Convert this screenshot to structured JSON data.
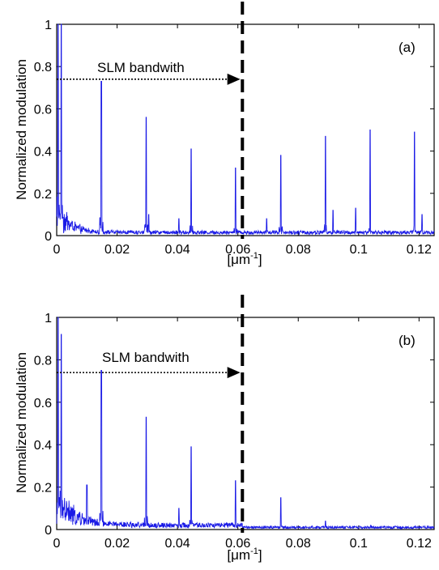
{
  "chart_data": [
    {
      "panel_label": "(a)",
      "type": "line",
      "ylabel": "Normalized modulation",
      "xlabel": "[μm⁻¹]",
      "xlabel_base": "[μm",
      "xlabel_exp": "-1",
      "xlabel_end": "]",
      "xlim": [
        0,
        0.125
      ],
      "ylim": [
        0,
        1
      ],
      "x_ticks": [
        "0",
        "0.02",
        "0.04",
        "0.06",
        "0.08",
        "0.1",
        "0.12"
      ],
      "x_tick_values": [
        0,
        0.02,
        0.04,
        0.06,
        0.08,
        0.1,
        0.12
      ],
      "y_ticks": [
        "0",
        "0.2",
        "0.4",
        "0.6",
        "0.8",
        "1"
      ],
      "y_tick_values": [
        0,
        0.2,
        0.4,
        0.6,
        0.8,
        1
      ],
      "grid": false,
      "annotation": {
        "text": "SLM bandwith",
        "arrow_from": [
          0.0,
          0.74
        ],
        "arrow_to": [
          0.0608,
          0.74
        ]
      },
      "cutoff_x": 0.0615,
      "series_color": "#1a1ae6",
      "noise": {
        "floor": 0.015,
        "decay_amp": 0.22,
        "decay_scale": 0.004
      },
      "peaks": [
        {
          "x": 0.0005,
          "y": 1.0
        },
        {
          "x": 0.0015,
          "y": 1.0
        },
        {
          "x": 0.0148,
          "y": 0.73
        },
        {
          "x": 0.0296,
          "y": 0.56
        },
        {
          "x": 0.0305,
          "y": 0.1
        },
        {
          "x": 0.0405,
          "y": 0.08
        },
        {
          "x": 0.0445,
          "y": 0.41
        },
        {
          "x": 0.0592,
          "y": 0.32
        },
        {
          "x": 0.0695,
          "y": 0.08
        },
        {
          "x": 0.0742,
          "y": 0.38
        },
        {
          "x": 0.089,
          "y": 0.47
        },
        {
          "x": 0.0915,
          "y": 0.12
        },
        {
          "x": 0.099,
          "y": 0.13
        },
        {
          "x": 0.1038,
          "y": 0.5
        },
        {
          "x": 0.1185,
          "y": 0.49
        },
        {
          "x": 0.121,
          "y": 0.1
        }
      ]
    },
    {
      "panel_label": "(b)",
      "type": "line",
      "ylabel": "Normalized modulation",
      "xlabel": "[μm⁻¹]",
      "xlabel_base": "[μm",
      "xlabel_exp": "-1",
      "xlabel_end": "]",
      "xlim": [
        0,
        0.125
      ],
      "ylim": [
        0,
        1
      ],
      "x_ticks": [
        "0",
        "0.02",
        "0.04",
        "0.06",
        "0.08",
        "0.1",
        "0.12"
      ],
      "x_tick_values": [
        0,
        0.02,
        0.04,
        0.06,
        0.08,
        0.1,
        0.12
      ],
      "y_ticks": [
        "0",
        "0.2",
        "0.4",
        "0.6",
        "0.8",
        "1"
      ],
      "y_tick_values": [
        0,
        0.2,
        0.4,
        0.6,
        0.8,
        1
      ],
      "grid": false,
      "annotation": {
        "text": "SLM bandwith",
        "arrow_from": [
          0.0,
          0.74
        ],
        "arrow_to": [
          0.0608,
          0.74
        ]
      },
      "cutoff_x": 0.0615,
      "series_color": "#1a1ae6",
      "noise": {
        "floor": 0.02,
        "decay_amp": 0.22,
        "decay_scale": 0.006,
        "cutoff_floor": 0.01
      },
      "peaks": [
        {
          "x": 0.0005,
          "y": 1.0
        },
        {
          "x": 0.0015,
          "y": 0.92
        },
        {
          "x": 0.01,
          "y": 0.21
        },
        {
          "x": 0.0148,
          "y": 0.75
        },
        {
          "x": 0.0296,
          "y": 0.53
        },
        {
          "x": 0.0405,
          "y": 0.1
        },
        {
          "x": 0.0445,
          "y": 0.39
        },
        {
          "x": 0.0592,
          "y": 0.23
        },
        {
          "x": 0.0742,
          "y": 0.15
        },
        {
          "x": 0.089,
          "y": 0.04
        },
        {
          "x": 0.104,
          "y": 0.02
        }
      ]
    }
  ]
}
